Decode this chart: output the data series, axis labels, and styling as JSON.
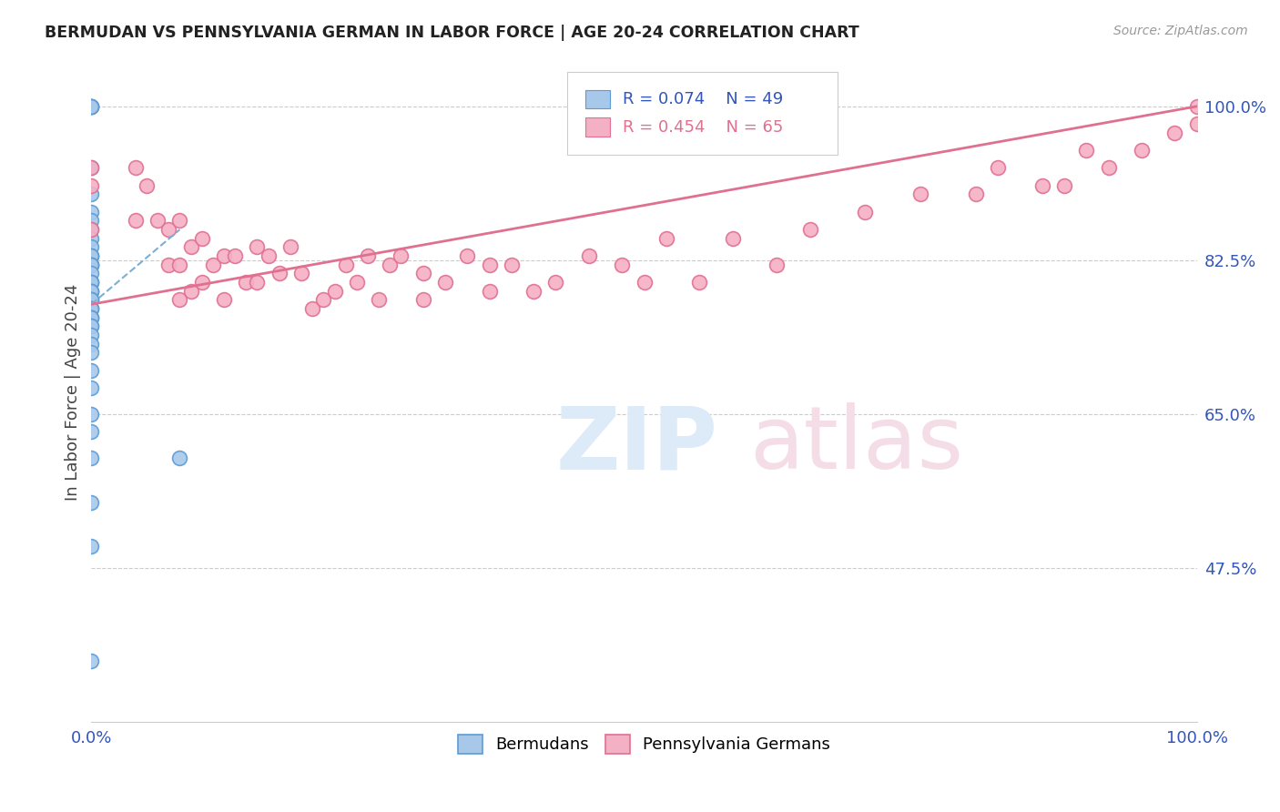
{
  "title": "BERMUDAN VS PENNSYLVANIA GERMAN IN LABOR FORCE | AGE 20-24 CORRELATION CHART",
  "source": "Source: ZipAtlas.com",
  "ylabel": "In Labor Force | Age 20-24",
  "xlim": [
    0.0,
    1.0
  ],
  "ylim": [
    0.3,
    1.05
  ],
  "y_ticks": [
    1.0,
    0.825,
    0.65,
    0.475
  ],
  "y_tick_labels": [
    "100.0%",
    "82.5%",
    "65.0%",
    "47.5%"
  ],
  "x_ticks": [
    0.0,
    1.0
  ],
  "x_tick_labels": [
    "0.0%",
    "100.0%"
  ],
  "bermudans_color": "#a8c8ea",
  "bermudans_edge": "#5b9bd5",
  "pa_german_color": "#f4b0c4",
  "pa_german_edge": "#e07090",
  "trend1_color": "#7bafd4",
  "trend2_color": "#e07090",
  "tick_color": "#3355bb",
  "bermudans_x": [
    0.0,
    0.0,
    0.0,
    0.0,
    0.0,
    0.0,
    0.0,
    0.0,
    0.0,
    0.0,
    0.0,
    0.0,
    0.0,
    0.0,
    0.0,
    0.0,
    0.0,
    0.0,
    0.0,
    0.0,
    0.0,
    0.0,
    0.0,
    0.0,
    0.0,
    0.0,
    0.0,
    0.0,
    0.0,
    0.0,
    0.0,
    0.0,
    0.0,
    0.0,
    0.0,
    0.0,
    0.0,
    0.0,
    0.0,
    0.0,
    0.0,
    0.0,
    0.0,
    0.0,
    0.0,
    0.08,
    0.0,
    0.0,
    0.0
  ],
  "bermudans_y": [
    1.0,
    1.0,
    1.0,
    1.0,
    1.0,
    0.93,
    0.9,
    0.88,
    0.87,
    0.86,
    0.85,
    0.84,
    0.83,
    0.83,
    0.83,
    0.82,
    0.82,
    0.82,
    0.82,
    0.81,
    0.8,
    0.8,
    0.8,
    0.79,
    0.79,
    0.79,
    0.78,
    0.78,
    0.78,
    0.77,
    0.77,
    0.77,
    0.76,
    0.76,
    0.76,
    0.75,
    0.75,
    0.74,
    0.73,
    0.72,
    0.7,
    0.68,
    0.65,
    0.63,
    0.6,
    0.6,
    0.55,
    0.5,
    0.37
  ],
  "pa_german_x": [
    0.0,
    0.0,
    0.0,
    0.04,
    0.04,
    0.05,
    0.06,
    0.07,
    0.07,
    0.08,
    0.08,
    0.08,
    0.09,
    0.09,
    0.1,
    0.1,
    0.11,
    0.12,
    0.12,
    0.13,
    0.14,
    0.15,
    0.15,
    0.16,
    0.17,
    0.18,
    0.19,
    0.2,
    0.21,
    0.22,
    0.23,
    0.24,
    0.25,
    0.26,
    0.27,
    0.28,
    0.3,
    0.3,
    0.32,
    0.34,
    0.36,
    0.36,
    0.38,
    0.4,
    0.42,
    0.45,
    0.48,
    0.5,
    0.52,
    0.55,
    0.58,
    0.62,
    0.65,
    0.7,
    0.75,
    0.8,
    0.82,
    0.86,
    0.88,
    0.9,
    0.92,
    0.95,
    0.98,
    1.0,
    1.0
  ],
  "pa_german_y": [
    0.93,
    0.91,
    0.86,
    0.93,
    0.87,
    0.91,
    0.87,
    0.86,
    0.82,
    0.87,
    0.82,
    0.78,
    0.84,
    0.79,
    0.85,
    0.8,
    0.82,
    0.83,
    0.78,
    0.83,
    0.8,
    0.84,
    0.8,
    0.83,
    0.81,
    0.84,
    0.81,
    0.77,
    0.78,
    0.79,
    0.82,
    0.8,
    0.83,
    0.78,
    0.82,
    0.83,
    0.81,
    0.78,
    0.8,
    0.83,
    0.79,
    0.82,
    0.82,
    0.79,
    0.8,
    0.83,
    0.82,
    0.8,
    0.85,
    0.8,
    0.85,
    0.82,
    0.86,
    0.88,
    0.9,
    0.9,
    0.93,
    0.91,
    0.91,
    0.95,
    0.93,
    0.95,
    0.97,
    0.98,
    1.0
  ],
  "trend1_x0": 0.0,
  "trend1_x1": 0.08,
  "trend1_y0": 0.775,
  "trend1_y1": 0.86,
  "trend2_x0": 0.0,
  "trend2_x1": 1.0,
  "trend2_y0": 0.775,
  "trend2_y1": 1.0
}
